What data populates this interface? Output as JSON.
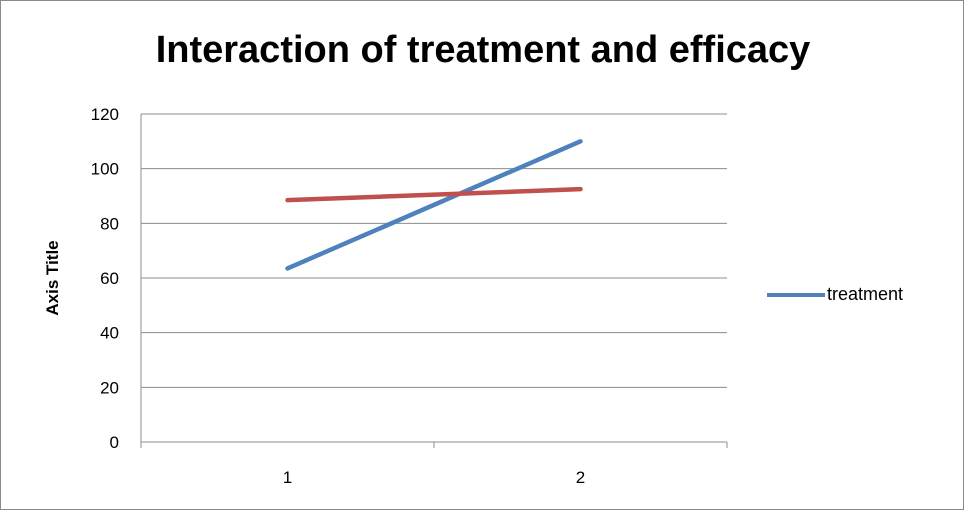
{
  "chart_data": {
    "type": "line",
    "title": "Interaction of treatment and efficacy",
    "xlabel": "",
    "ylabel": "Axis Title",
    "categories": [
      "1",
      "2"
    ],
    "ylim": [
      0,
      120
    ],
    "yticks": [
      "0",
      "20",
      "40",
      "60",
      "80",
      "100",
      "120"
    ],
    "grid": true,
    "legend_position": "right",
    "series": [
      {
        "name": "treatment",
        "values": [
          63.5,
          110
        ],
        "color": "#4f81bd"
      },
      {
        "values": [
          88.5,
          92.5
        ],
        "color": "#c0504d"
      }
    ]
  }
}
